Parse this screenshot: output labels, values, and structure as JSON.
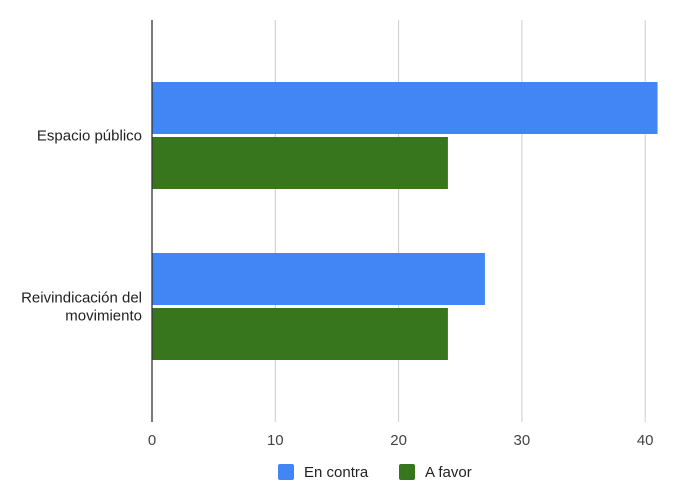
{
  "chart_data": {
    "type": "bar",
    "orientation": "horizontal",
    "title": "",
    "xlabel": "",
    "ylabel": "",
    "categories": [
      "Espacio público",
      "Reivindicación del movimiento"
    ],
    "category_label_lines": [
      [
        "Espacio público"
      ],
      [
        "Reivindicación del",
        "movimiento"
      ]
    ],
    "series": [
      {
        "name": "En contra",
        "values": [
          41,
          27
        ],
        "color": "#4285f4"
      },
      {
        "name": "A favor",
        "values": [
          24,
          24
        ],
        "color": "#38761d"
      }
    ],
    "xlim": [
      0,
      41
    ],
    "xticks": [
      0,
      10,
      20,
      30,
      40
    ],
    "grid": true,
    "legend": "bottom"
  }
}
